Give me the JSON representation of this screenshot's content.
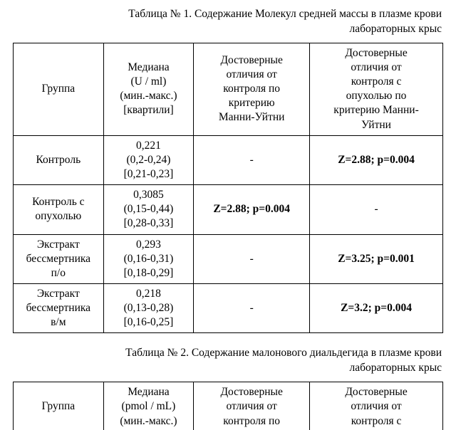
{
  "table1": {
    "caption_line1": "Таблица № 1. Содержание Молекул средней массы в плазме крови",
    "caption_line2": "лабораторных крыс",
    "headers": {
      "group": "Группа",
      "median_l1": "Медиана",
      "median_l2": "(U / ml)",
      "median_l3": "(мин.-макс.)",
      "median_l4": "[квартили]",
      "sig1_l1": "Достоверные",
      "sig1_l2": "отличия от",
      "sig1_l3": "контроля  по",
      "sig1_l4": "критерию",
      "sig1_l5": "Манни-Уйтни",
      "sig2_l1": "Достоверные",
      "sig2_l2": "отличия от",
      "sig2_l3": "контроля с",
      "sig2_l4": "опухолью  по",
      "sig2_l5": "критерию Манни-",
      "sig2_l6": "Уйтни"
    },
    "rows": [
      {
        "group": "Контроль",
        "median_l1": "0,221",
        "median_l2": "(0,2-0,24)",
        "median_l3": "[0,21-0,23]",
        "sig1": "-",
        "sig1_bold": false,
        "sig2": "Z=2.88; p=0.004",
        "sig2_bold": true
      },
      {
        "group_l1": "Контроль с",
        "group_l2": "опухолью",
        "median_l1": "0,3085",
        "median_l2": "(0,15-0,44)",
        "median_l3": "[0,28-0,33]",
        "sig1": "Z=2.88; p=0.004",
        "sig1_bold": true,
        "sig2": "-",
        "sig2_bold": false
      },
      {
        "group_l1": "Экстракт",
        "group_l2": "бессмертника",
        "group_l3": "п/о",
        "median_l1": "0,293",
        "median_l2": "(0,16-0,31)",
        "median_l3": "[0,18-0,29]",
        "sig1": "-",
        "sig1_bold": false,
        "sig2": "Z=3.25; p=0.001",
        "sig2_bold": true
      },
      {
        "group_l1": "Экстракт",
        "group_l2": "бессмертника",
        "group_l3": "в/м",
        "median_l1": "0,218",
        "median_l2": "(0,13-0,28)",
        "median_l3": "[0,16-0,25]",
        "sig1": "-",
        "sig1_bold": false,
        "sig2": "Z=3.2; p=0.004",
        "sig2_bold": true
      }
    ]
  },
  "table2": {
    "caption_line1": "Таблица № 2. Содержание малонового диальдегида в плазме крови",
    "caption_line2": "лабораторных крыс",
    "headers": {
      "group": "Группа",
      "median_l1": "Медиана",
      "median_l2": "(pmol / mL)",
      "median_l3": "(мин.-макс.)",
      "sig1_l1": "Достоверные",
      "sig1_l2": "отличия от",
      "sig1_l3": "контроля по",
      "sig2_l1": "Достоверные",
      "sig2_l2": "отличия от",
      "sig2_l3": "контроля с"
    }
  }
}
